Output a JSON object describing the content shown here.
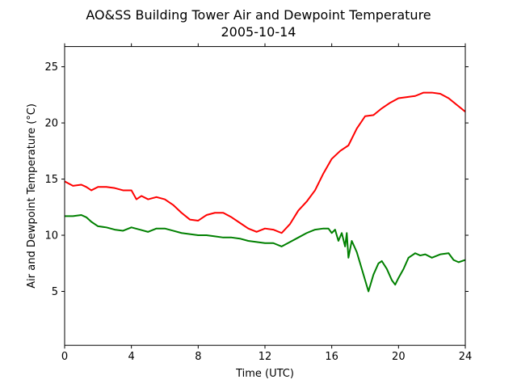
{
  "chart_data": {
    "type": "line",
    "title": "AO&SS Building Tower Air and Dewpoint Temperature",
    "subtitle": "2005-10-14",
    "xlabel": "Time (UTC)",
    "ylabel": "Air and Dewpoint Temperature (°C)",
    "xlim": [
      0,
      24
    ],
    "ylim": [
      0.2,
      26.8
    ],
    "xticks": [
      0,
      4,
      8,
      12,
      16,
      20,
      24
    ],
    "yticks": [
      5,
      10,
      15,
      20,
      25
    ],
    "grid": false,
    "legend": "none",
    "series": [
      {
        "color": "#ff0000",
        "x": [
          0,
          0.5,
          1,
          1.3,
          1.6,
          2,
          2.5,
          3,
          3.5,
          4,
          4.3,
          4.6,
          5,
          5.5,
          6,
          6.5,
          7,
          7.5,
          8,
          8.5,
          9,
          9.5,
          10,
          10.5,
          11,
          11.5,
          12,
          12.5,
          13,
          13.5,
          14,
          14.5,
          15,
          15.5,
          16,
          16.5,
          17,
          17.5,
          18,
          18.5,
          19,
          19.5,
          20,
          20.5,
          21,
          21.5,
          22,
          22.5,
          23,
          23.5,
          24
        ],
        "y": [
          14.8,
          14.4,
          14.5,
          14.3,
          14.0,
          14.3,
          14.3,
          14.2,
          14.0,
          14.0,
          13.2,
          13.5,
          13.2,
          13.4,
          13.2,
          12.7,
          12.0,
          11.4,
          11.3,
          11.8,
          12.0,
          12.0,
          11.6,
          11.1,
          10.6,
          10.3,
          10.6,
          10.5,
          10.2,
          11.0,
          12.2,
          13.0,
          14.0,
          15.5,
          16.8,
          17.5,
          18.0,
          19.5,
          20.6,
          20.7,
          21.3,
          21.8,
          22.2,
          22.3,
          22.4,
          22.7,
          22.7,
          22.6,
          22.2,
          21.6,
          21.0
        ]
      },
      {
        "color": "#008000",
        "x": [
          0,
          0.5,
          1,
          1.3,
          1.6,
          2,
          2.5,
          3,
          3.5,
          4,
          4.5,
          5,
          5.5,
          6,
          6.5,
          7,
          7.5,
          8,
          8.5,
          9,
          9.5,
          10,
          10.5,
          11,
          11.5,
          12,
          12.5,
          13,
          13.5,
          14,
          14.5,
          15,
          15.5,
          15.8,
          16,
          16.2,
          16.4,
          16.6,
          16.8,
          16.9,
          17,
          17.2,
          17.5,
          17.8,
          18,
          18.2,
          18.5,
          18.8,
          19,
          19.3,
          19.6,
          19.8,
          20,
          20.3,
          20.6,
          21,
          21.3,
          21.6,
          22,
          22.5,
          23,
          23.3,
          23.6,
          24
        ],
        "y": [
          11.7,
          11.7,
          11.8,
          11.6,
          11.2,
          10.8,
          10.7,
          10.5,
          10.4,
          10.7,
          10.5,
          10.3,
          10.6,
          10.6,
          10.4,
          10.2,
          10.1,
          10.0,
          10.0,
          9.9,
          9.8,
          9.8,
          9.7,
          9.5,
          9.4,
          9.3,
          9.3,
          9.0,
          9.4,
          9.8,
          10.2,
          10.5,
          10.6,
          10.6,
          10.2,
          10.5,
          9.5,
          10.2,
          9.0,
          10.2,
          8.0,
          9.5,
          8.5,
          7.0,
          6.0,
          5.0,
          6.5,
          7.5,
          7.7,
          7.0,
          6.0,
          5.6,
          6.2,
          7.0,
          8.0,
          8.4,
          8.2,
          8.3,
          8.0,
          8.3,
          8.4,
          7.8,
          7.6,
          7.8
        ]
      }
    ]
  }
}
